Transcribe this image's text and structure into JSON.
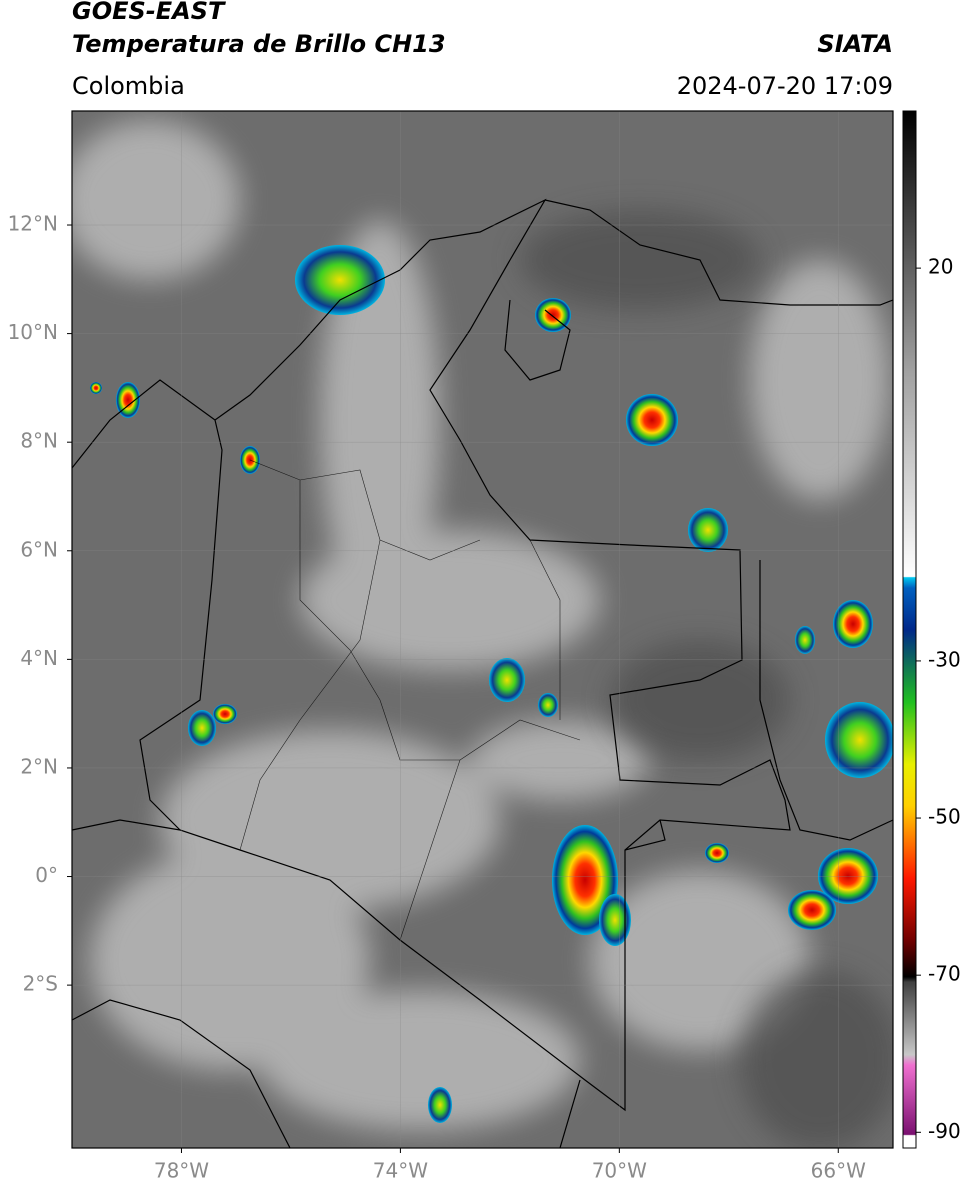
{
  "header": {
    "title": "GOES-EAST",
    "subtitle": "Temperatura de Brillo CH13",
    "source": "SIATA",
    "region": "Colombia",
    "datetime": "2024-07-20 17:09"
  },
  "map": {
    "lonlim": [
      -80,
      -65
    ],
    "latlim": [
      -5,
      14.1
    ],
    "lonticks": [
      {
        "value": -78,
        "label": "78°W"
      },
      {
        "value": -74,
        "label": "74°W"
      },
      {
        "value": -70,
        "label": "70°W"
      },
      {
        "value": -66,
        "label": "66°W"
      }
    ],
    "latticks": [
      {
        "value": 12,
        "label": "12°N"
      },
      {
        "value": 10,
        "label": "10°N"
      },
      {
        "value": 8,
        "label": "8°N"
      },
      {
        "value": 6,
        "label": "6°N"
      },
      {
        "value": 4,
        "label": "4°N"
      },
      {
        "value": 2,
        "label": "2°N"
      },
      {
        "value": 0,
        "label": "0°"
      },
      {
        "value": -2,
        "label": "2°S"
      }
    ]
  },
  "colorbar": {
    "lim": [
      -92,
      40
    ],
    "ticks": [
      20,
      -30,
      -50,
      -70,
      -90
    ]
  }
}
